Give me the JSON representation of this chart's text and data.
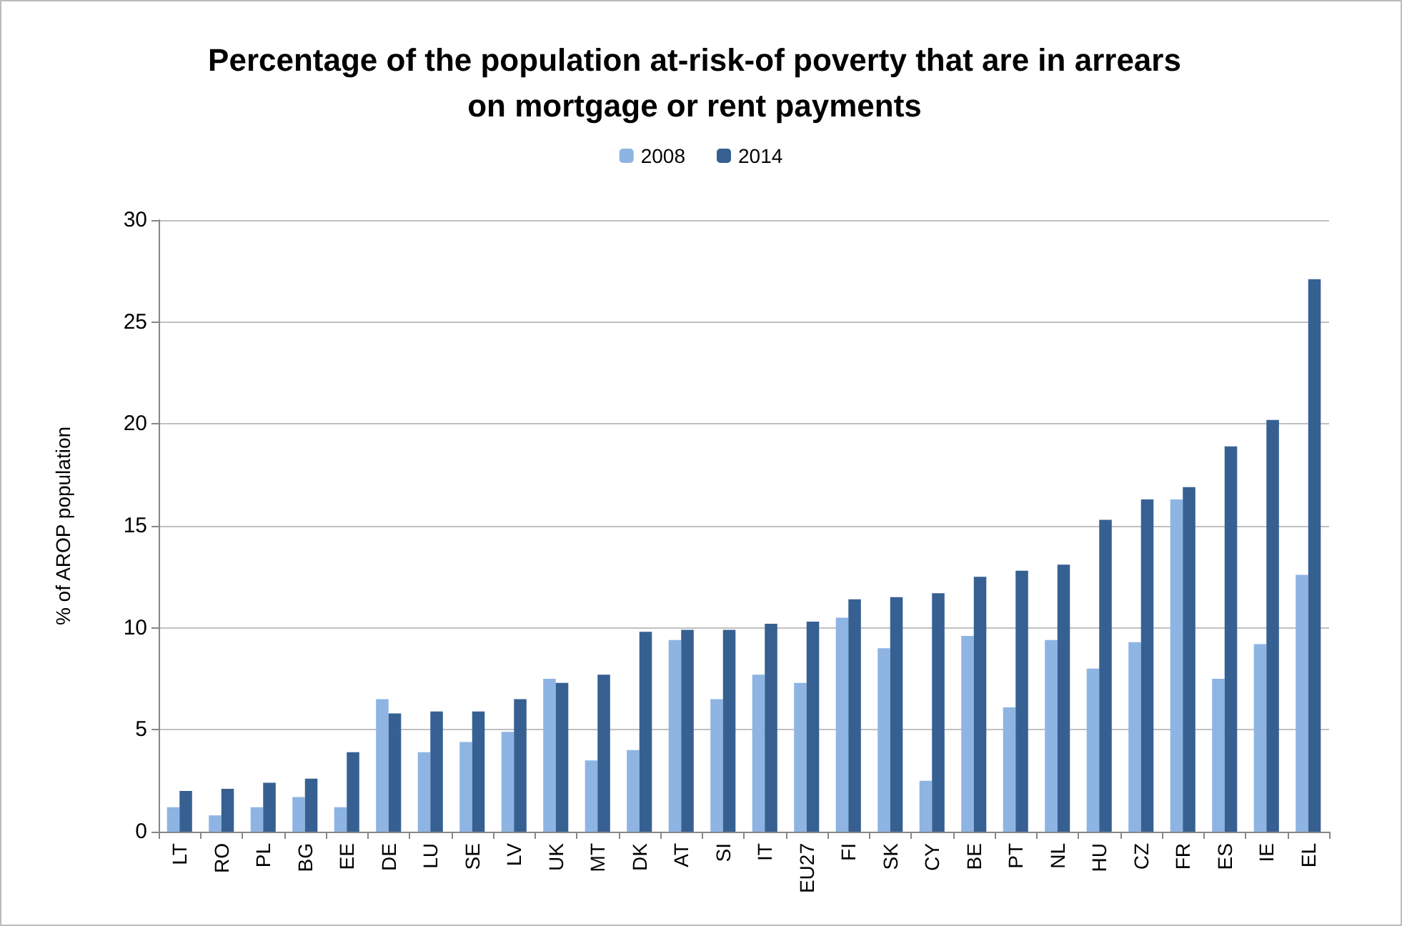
{
  "chart_data": {
    "type": "bar",
    "title": "Percentage of the population at-risk-of poverty that are in arrears\non mortgage or rent payments",
    "ylabel": "% of AROP population",
    "categories": [
      "LT",
      "RO",
      "PL",
      "BG",
      "EE",
      "DE",
      "LU",
      "SE",
      "LV",
      "UK",
      "MT",
      "DK",
      "AT",
      "SI",
      "IT",
      "EU27",
      "FI",
      "SK",
      "CY",
      "BE",
      "PT",
      "NL",
      "HU",
      "CZ",
      "FR",
      "ES",
      "IE",
      "EL"
    ],
    "series": [
      {
        "name": "2008",
        "color": "#8eb4e3",
        "values": [
          1.2,
          0.8,
          1.2,
          1.7,
          1.2,
          6.5,
          3.9,
          4.4,
          4.9,
          7.5,
          3.5,
          4.0,
          9.4,
          6.5,
          7.7,
          7.3,
          10.5,
          9.0,
          2.5,
          9.6,
          6.1,
          9.4,
          8.0,
          9.3,
          16.3,
          7.5,
          9.2,
          12.6
        ]
      },
      {
        "name": "2014",
        "color": "#376092",
        "values": [
          2.0,
          2.1,
          2.4,
          2.6,
          3.9,
          5.8,
          5.9,
          5.9,
          6.5,
          7.3,
          7.7,
          9.8,
          9.9,
          9.9,
          10.2,
          10.3,
          11.4,
          11.5,
          11.7,
          12.5,
          12.8,
          13.1,
          15.3,
          16.3,
          16.9,
          18.9,
          20.2,
          27.1
        ]
      }
    ],
    "ylim": [
      0,
      30
    ],
    "yticks": [
      0,
      5,
      10,
      15,
      20,
      25,
      30
    ],
    "grid": "y",
    "legend": "top"
  }
}
